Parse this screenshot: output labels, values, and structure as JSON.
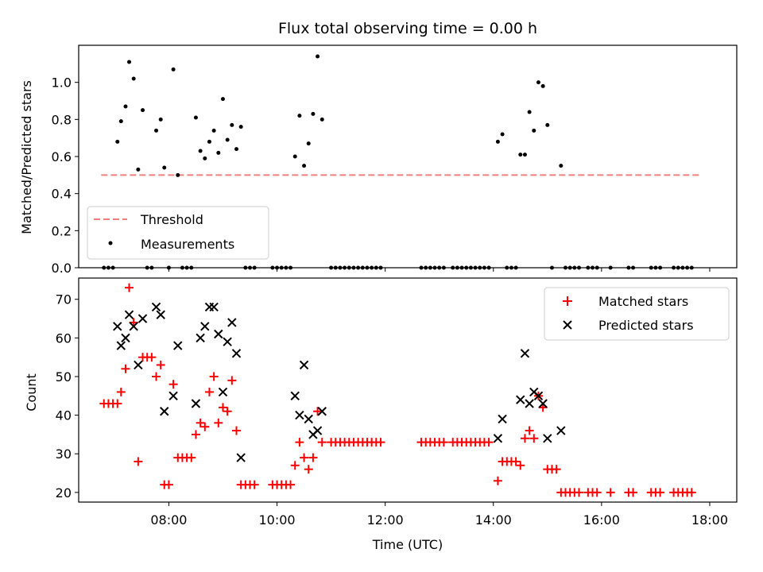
{
  "chart_data": [
    {
      "type": "scatter",
      "title": "Flux total observing time = 0.00 h",
      "xlabel": "",
      "ylabel": "Matched/Predicted stars",
      "xlim": [
        "06:20",
        "18:30"
      ],
      "ylim": [
        0,
        1.2
      ],
      "yticks": [
        0.0,
        0.2,
        0.4,
        0.6,
        0.8,
        1.0
      ],
      "grid": false,
      "legend_position": "lower-left",
      "legend": [
        "Threshold",
        "Measurements"
      ],
      "threshold": {
        "name": "Threshold",
        "value": 0.5,
        "x_start": "06:45",
        "x_end": "17:50",
        "color": "#f08080"
      },
      "series": [
        {
          "name": "Measurements",
          "marker": "dot",
          "color": "#000000",
          "points": [
            [
              "06:48",
              0
            ],
            [
              "06:53",
              0
            ],
            [
              "06:58",
              0
            ],
            [
              "07:03",
              0.68
            ],
            [
              "07:07",
              0.79
            ],
            [
              "07:12",
              0.87
            ],
            [
              "07:16",
              1.11
            ],
            [
              "07:21",
              1.02
            ],
            [
              "07:26",
              0.53
            ],
            [
              "07:31",
              0.85
            ],
            [
              "07:36",
              0
            ],
            [
              "07:41",
              0
            ],
            [
              "07:46",
              0.74
            ],
            [
              "07:51",
              0.8
            ],
            [
              "07:55",
              0.54
            ],
            [
              "08:00",
              0
            ],
            [
              "08:05",
              1.07
            ],
            [
              "08:10",
              0.5
            ],
            [
              "08:15",
              0
            ],
            [
              "08:20",
              0
            ],
            [
              "08:25",
              0
            ],
            [
              "08:30",
              0.81
            ],
            [
              "08:35",
              0.63
            ],
            [
              "08:40",
              0.59
            ],
            [
              "08:45",
              0.68
            ],
            [
              "08:50",
              0.74
            ],
            [
              "08:55",
              0.62
            ],
            [
              "09:00",
              0.91
            ],
            [
              "09:05",
              0.69
            ],
            [
              "09:10",
              0.77
            ],
            [
              "09:15",
              0.64
            ],
            [
              "09:20",
              0.76
            ],
            [
              "09:25",
              0
            ],
            [
              "09:30",
              0
            ],
            [
              "09:35",
              0
            ],
            [
              "09:55",
              0
            ],
            [
              "10:00",
              0
            ],
            [
              "10:05",
              0
            ],
            [
              "10:10",
              0
            ],
            [
              "10:15",
              0
            ],
            [
              "10:20",
              0.6
            ],
            [
              "10:25",
              0.82
            ],
            [
              "10:30",
              0.55
            ],
            [
              "10:35",
              0.67
            ],
            [
              "10:40",
              0.83
            ],
            [
              "10:45",
              1.14
            ],
            [
              "10:50",
              0.8
            ],
            [
              "11:00",
              0
            ],
            [
              "11:05",
              0
            ],
            [
              "11:10",
              0
            ],
            [
              "11:15",
              0
            ],
            [
              "11:20",
              0
            ],
            [
              "11:25",
              0
            ],
            [
              "11:30",
              0
            ],
            [
              "11:35",
              0
            ],
            [
              "11:40",
              0
            ],
            [
              "11:45",
              0
            ],
            [
              "11:50",
              0
            ],
            [
              "11:55",
              0
            ],
            [
              "12:40",
              0
            ],
            [
              "12:45",
              0
            ],
            [
              "12:50",
              0
            ],
            [
              "12:55",
              0
            ],
            [
              "13:00",
              0
            ],
            [
              "13:05",
              0
            ],
            [
              "13:15",
              0
            ],
            [
              "13:20",
              0
            ],
            [
              "13:25",
              0
            ],
            [
              "13:30",
              0
            ],
            [
              "13:35",
              0
            ],
            [
              "13:40",
              0
            ],
            [
              "13:45",
              0
            ],
            [
              "13:50",
              0
            ],
            [
              "13:55",
              0
            ],
            [
              "14:05",
              0.68
            ],
            [
              "14:10",
              0.72
            ],
            [
              "14:15",
              0
            ],
            [
              "14:20",
              0
            ],
            [
              "14:25",
              0
            ],
            [
              "14:30",
              0.61
            ],
            [
              "14:35",
              0.61
            ],
            [
              "14:40",
              0.84
            ],
            [
              "14:45",
              0.74
            ],
            [
              "14:50",
              1.0
            ],
            [
              "14:55",
              0.98
            ],
            [
              "15:00",
              0.77
            ],
            [
              "15:05",
              0
            ],
            [
              "15:15",
              0.55
            ],
            [
              "15:20",
              0
            ],
            [
              "15:25",
              0
            ],
            [
              "15:30",
              0
            ],
            [
              "15:35",
              0
            ],
            [
              "15:45",
              0
            ],
            [
              "15:50",
              0
            ],
            [
              "15:55",
              0
            ],
            [
              "16:10",
              0
            ],
            [
              "16:30",
              0
            ],
            [
              "16:35",
              0
            ],
            [
              "16:55",
              0
            ],
            [
              "17:00",
              0
            ],
            [
              "17:05",
              0
            ],
            [
              "17:20",
              0
            ],
            [
              "17:25",
              0
            ],
            [
              "17:30",
              0
            ],
            [
              "17:35",
              0
            ],
            [
              "17:40",
              0
            ]
          ]
        }
      ]
    },
    {
      "type": "scatter",
      "title": "",
      "xlabel": "Time (UTC)",
      "ylabel": "Count",
      "xlim": [
        "06:20",
        "18:30"
      ],
      "xticks": [
        "08:00",
        "10:00",
        "12:00",
        "14:00",
        "16:00",
        "18:00"
      ],
      "ylim": [
        17.5,
        75.5
      ],
      "yticks": [
        20,
        30,
        40,
        50,
        60,
        70
      ],
      "grid": false,
      "legend_position": "top-right",
      "legend": [
        "Matched stars",
        "Predicted stars"
      ],
      "series": [
        {
          "name": "Matched stars",
          "marker": "plus",
          "color": "#ff0000",
          "points": [
            [
              "06:48",
              43
            ],
            [
              "06:53",
              43
            ],
            [
              "06:58",
              43
            ],
            [
              "07:03",
              43
            ],
            [
              "07:07",
              46
            ],
            [
              "07:12",
              52
            ],
            [
              "07:16",
              73
            ],
            [
              "07:21",
              64
            ],
            [
              "07:26",
              28
            ],
            [
              "07:31",
              55
            ],
            [
              "07:36",
              55
            ],
            [
              "07:41",
              55
            ],
            [
              "07:46",
              50
            ],
            [
              "07:51",
              53
            ],
            [
              "07:55",
              22
            ],
            [
              "08:00",
              22
            ],
            [
              "08:05",
              48
            ],
            [
              "08:10",
              29
            ],
            [
              "08:15",
              29
            ],
            [
              "08:20",
              29
            ],
            [
              "08:25",
              29
            ],
            [
              "08:30",
              35
            ],
            [
              "08:35",
              38
            ],
            [
              "08:40",
              37
            ],
            [
              "08:45",
              46
            ],
            [
              "08:50",
              50
            ],
            [
              "08:55",
              38
            ],
            [
              "09:00",
              42
            ],
            [
              "09:05",
              41
            ],
            [
              "09:10",
              49
            ],
            [
              "09:15",
              36
            ],
            [
              "09:20",
              22
            ],
            [
              "09:25",
              22
            ],
            [
              "09:30",
              22
            ],
            [
              "09:35",
              22
            ],
            [
              "09:55",
              22
            ],
            [
              "10:00",
              22
            ],
            [
              "10:05",
              22
            ],
            [
              "10:10",
              22
            ],
            [
              "10:15",
              22
            ],
            [
              "10:20",
              27
            ],
            [
              "10:25",
              33
            ],
            [
              "10:30",
              29
            ],
            [
              "10:35",
              26
            ],
            [
              "10:40",
              29
            ],
            [
              "10:45",
              41
            ],
            [
              "10:50",
              33
            ],
            [
              "11:00",
              33
            ],
            [
              "11:05",
              33
            ],
            [
              "11:10",
              33
            ],
            [
              "11:15",
              33
            ],
            [
              "11:20",
              33
            ],
            [
              "11:25",
              33
            ],
            [
              "11:30",
              33
            ],
            [
              "11:35",
              33
            ],
            [
              "11:40",
              33
            ],
            [
              "11:45",
              33
            ],
            [
              "11:50",
              33
            ],
            [
              "11:55",
              33
            ],
            [
              "12:40",
              33
            ],
            [
              "12:45",
              33
            ],
            [
              "12:50",
              33
            ],
            [
              "12:55",
              33
            ],
            [
              "13:00",
              33
            ],
            [
              "13:05",
              33
            ],
            [
              "13:15",
              33
            ],
            [
              "13:20",
              33
            ],
            [
              "13:25",
              33
            ],
            [
              "13:30",
              33
            ],
            [
              "13:35",
              33
            ],
            [
              "13:40",
              33
            ],
            [
              "13:45",
              33
            ],
            [
              "13:50",
              33
            ],
            [
              "13:55",
              33
            ],
            [
              "14:05",
              23
            ],
            [
              "14:10",
              28
            ],
            [
              "14:15",
              28
            ],
            [
              "14:20",
              28
            ],
            [
              "14:25",
              28
            ],
            [
              "14:30",
              27
            ],
            [
              "14:35",
              34
            ],
            [
              "14:40",
              36
            ],
            [
              "14:45",
              34
            ],
            [
              "14:50",
              45
            ],
            [
              "14:55",
              42
            ],
            [
              "15:00",
              26
            ],
            [
              "15:05",
              26
            ],
            [
              "15:10",
              26
            ],
            [
              "15:15",
              20
            ],
            [
              "15:20",
              20
            ],
            [
              "15:25",
              20
            ],
            [
              "15:30",
              20
            ],
            [
              "15:35",
              20
            ],
            [
              "15:45",
              20
            ],
            [
              "15:50",
              20
            ],
            [
              "15:55",
              20
            ],
            [
              "16:10",
              20
            ],
            [
              "16:30",
              20
            ],
            [
              "16:35",
              20
            ],
            [
              "16:55",
              20
            ],
            [
              "17:00",
              20
            ],
            [
              "17:05",
              20
            ],
            [
              "17:20",
              20
            ],
            [
              "17:25",
              20
            ],
            [
              "17:30",
              20
            ],
            [
              "17:35",
              20
            ],
            [
              "17:40",
              20
            ]
          ]
        },
        {
          "name": "Predicted stars",
          "marker": "x",
          "color": "#000000",
          "points": [
            [
              "07:03",
              63
            ],
            [
              "07:07",
              58
            ],
            [
              "07:12",
              60
            ],
            [
              "07:16",
              66
            ],
            [
              "07:21",
              63
            ],
            [
              "07:26",
              53
            ],
            [
              "07:31",
              65
            ],
            [
              "07:46",
              68
            ],
            [
              "07:51",
              66
            ],
            [
              "07:55",
              41
            ],
            [
              "08:05",
              45
            ],
            [
              "08:10",
              58
            ],
            [
              "08:30",
              43
            ],
            [
              "08:35",
              60
            ],
            [
              "08:40",
              63
            ],
            [
              "08:45",
              68
            ],
            [
              "08:50",
              68
            ],
            [
              "08:55",
              61
            ],
            [
              "09:00",
              46
            ],
            [
              "09:05",
              59
            ],
            [
              "09:10",
              64
            ],
            [
              "09:15",
              56
            ],
            [
              "09:20",
              29
            ],
            [
              "10:20",
              45
            ],
            [
              "10:25",
              40
            ],
            [
              "10:30",
              53
            ],
            [
              "10:35",
              39
            ],
            [
              "10:40",
              35
            ],
            [
              "10:45",
              36
            ],
            [
              "10:50",
              41
            ],
            [
              "14:05",
              34
            ],
            [
              "14:10",
              39
            ],
            [
              "14:30",
              44
            ],
            [
              "14:35",
              56
            ],
            [
              "14:40",
              43
            ],
            [
              "14:45",
              46
            ],
            [
              "14:50",
              45
            ],
            [
              "14:55",
              43
            ],
            [
              "15:00",
              34
            ],
            [
              "15:15",
              36
            ]
          ]
        }
      ]
    }
  ]
}
